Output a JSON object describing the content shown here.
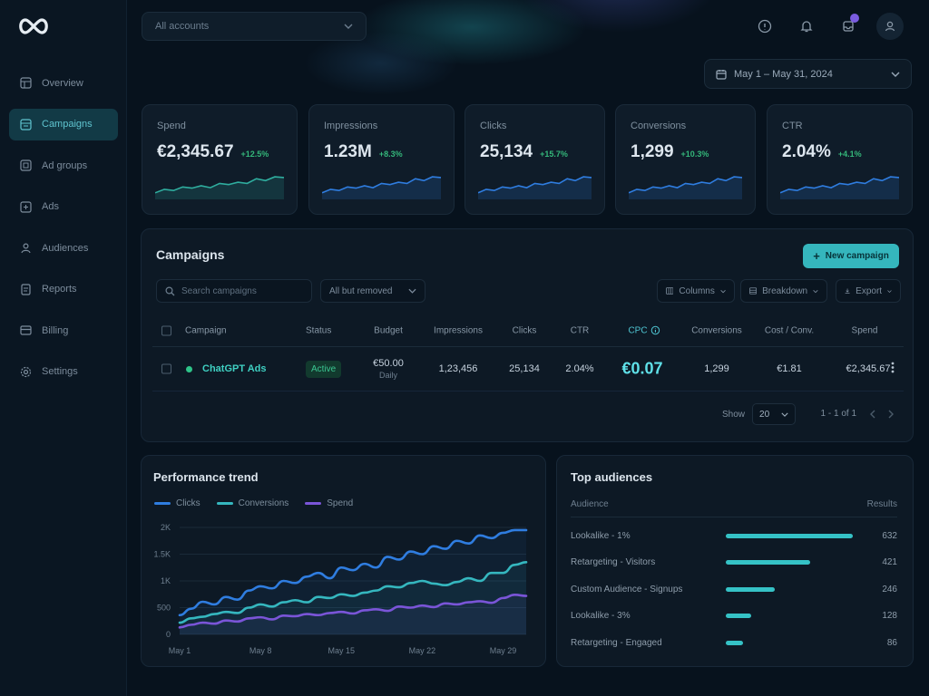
{
  "brand": {
    "logo_icon": "infinity-logo-icon"
  },
  "sidebar": {
    "items": [
      {
        "label": "Overview",
        "icon": "grid-icon",
        "active": false
      },
      {
        "label": "Campaigns",
        "icon": "campaign-icon",
        "active": true
      },
      {
        "label": "Ad groups",
        "icon": "layers-icon",
        "active": false
      },
      {
        "label": "Ads",
        "icon": "ad-icon",
        "active": false
      },
      {
        "label": "Audiences",
        "icon": "users-icon",
        "active": false
      },
      {
        "label": "Reports",
        "icon": "report-icon",
        "active": false
      },
      {
        "label": "Billing",
        "icon": "card-icon",
        "active": false
      },
      {
        "label": "Settings",
        "icon": "gear-icon",
        "active": false
      }
    ]
  },
  "header": {
    "account_select": "All accounts",
    "date_range": "May 1 – May 31, 2024"
  },
  "kpis": [
    {
      "label": "Spend",
      "value": "€2,345.67",
      "delta": "+12.5%"
    },
    {
      "label": "Impressions",
      "value": "1.23M",
      "delta": "+8.3%"
    },
    {
      "label": "Clicks",
      "value": "25,134",
      "delta": "+15.7%"
    },
    {
      "label": "Conversions",
      "value": "1,299",
      "delta": "+10.3%"
    },
    {
      "label": "CTR",
      "value": "2.04%",
      "delta": "+4.1%"
    }
  ],
  "campaigns": {
    "title": "Campaigns",
    "new_button": "New campaign",
    "search_placeholder": "Search campaigns",
    "filter": "All but removed",
    "columns_button": "Columns",
    "breakdown_button": "Breakdown",
    "export_button": "Export",
    "headers": {
      "campaign": "Campaign",
      "status": "Status",
      "budget": "Budget",
      "impressions": "Impressions",
      "clicks": "Clicks",
      "ctr": "CTR",
      "cpc": "CPC",
      "conversions": "Conversions",
      "cost_conv": "Cost / Conv.",
      "spend": "Spend"
    },
    "rows": [
      {
        "name": "ChatGPT Ads",
        "status": "Active",
        "budget": "€50.00",
        "budget_period": "Daily",
        "impressions": "1,23,456",
        "clicks": "25,134",
        "ctr": "2.04%",
        "cpc": "€0.07",
        "conversions": "1,299",
        "cost_conv": "€1.81",
        "spend": "€2,345.67"
      }
    ],
    "footer": {
      "show_label": "Show",
      "page_size": "20",
      "range": "1 - 1 of 1"
    }
  },
  "trend": {
    "title": "Performance trend",
    "legend": [
      {
        "name": "Clicks",
        "color": "#2f7de0"
      },
      {
        "name": "Conversions",
        "color": "#35b7bf"
      },
      {
        "name": "Spend",
        "color": "#7a55d8"
      }
    ],
    "y_ticks": [
      "2K",
      "1.5K",
      "1K",
      "500",
      "0"
    ],
    "x_ticks": [
      "May 1",
      "May 8",
      "May 15",
      "May 22",
      "May 29"
    ]
  },
  "chart_data": {
    "type": "line",
    "title": "Performance trend",
    "xlabel": "",
    "ylabel": "",
    "ylim": [
      0,
      2000
    ],
    "categories": [
      "May 1",
      "May 2",
      "May 3",
      "May 4",
      "May 5",
      "May 6",
      "May 7",
      "May 8",
      "May 9",
      "May 10",
      "May 11",
      "May 12",
      "May 13",
      "May 14",
      "May 15",
      "May 16",
      "May 17",
      "May 18",
      "May 19",
      "May 20",
      "May 21",
      "May 22",
      "May 23",
      "May 24",
      "May 25",
      "May 26",
      "May 27",
      "May 28",
      "May 29",
      "May 30",
      "May 31"
    ],
    "x_tick_labels": [
      "May 1",
      "May 8",
      "May 15",
      "May 22",
      "May 29"
    ],
    "y_tick_labels": [
      "0",
      "500",
      "1K",
      "1.5K",
      "2K"
    ],
    "series": [
      {
        "name": "Clicks",
        "values": [
          360,
          480,
          610,
          560,
          700,
          650,
          820,
          900,
          860,
          1000,
          960,
          1080,
          1150,
          1050,
          1250,
          1200,
          1320,
          1250,
          1450,
          1400,
          1550,
          1500,
          1650,
          1600,
          1750,
          1700,
          1850,
          1800,
          1900,
          1950,
          1950
        ]
      },
      {
        "name": "Conversions",
        "values": [
          220,
          300,
          330,
          380,
          420,
          400,
          500,
          560,
          520,
          600,
          640,
          600,
          700,
          680,
          750,
          720,
          780,
          820,
          900,
          880,
          960,
          1000,
          950,
          920,
          980,
          1050,
          1000,
          1150,
          1150,
          1300,
          1350
        ]
      },
      {
        "name": "Spend",
        "values": [
          130,
          180,
          220,
          200,
          260,
          240,
          300,
          320,
          280,
          350,
          340,
          380,
          360,
          400,
          420,
          390,
          450,
          470,
          440,
          520,
          500,
          540,
          510,
          580,
          560,
          600,
          620,
          590,
          680,
          740,
          720
        ]
      }
    ],
    "grid": true,
    "legend": "top-left"
  },
  "audiences": {
    "title": "Top audiences",
    "col_audience": "Audience",
    "col_results": "Results",
    "max_results": 632,
    "rows": [
      {
        "name": "Lookalike - 1%",
        "results": 632
      },
      {
        "name": "Retargeting - Visitors",
        "results": 421
      },
      {
        "name": "Custom Audience - Signups",
        "results": 246
      },
      {
        "name": "Lookalike - 3%",
        "results": 128
      },
      {
        "name": "Retargeting - Engaged",
        "results": 86
      }
    ]
  }
}
